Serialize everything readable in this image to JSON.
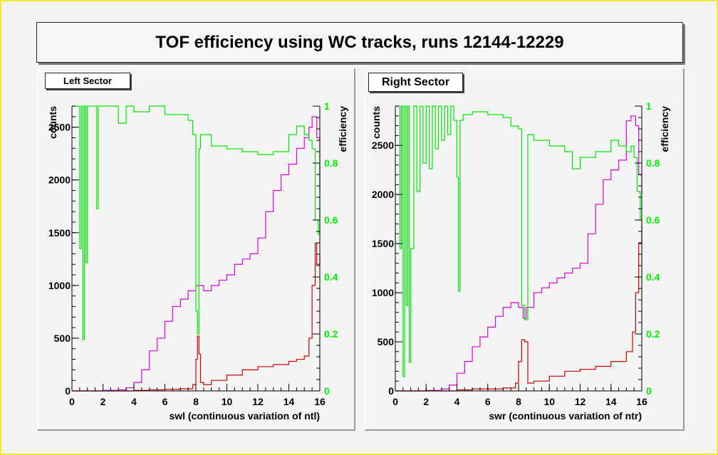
{
  "title": "TOF efficiency using WC tracks, runs 12144-12229",
  "colors": {
    "counts_all": "#dd00dd",
    "counts_fail": "#cc0000",
    "efficiency": "#00e600",
    "efficiency_axis": "#00ee00",
    "axis": "#000000",
    "frame": "#f0e93a"
  },
  "chart_data": [
    {
      "type": "line",
      "label": "Left Sector",
      "xlabel": "swl (continuous variation of ntl)",
      "ylabel": "counts",
      "y2label": "efficiency",
      "xlim": [
        0,
        16
      ],
      "ylim": [
        0,
        2700
      ],
      "y2lim": [
        0,
        1
      ],
      "x_ticks": [
        "0",
        "2",
        "4",
        "6",
        "8",
        "10",
        "12",
        "14",
        "16"
      ],
      "y_ticks": [
        "0",
        "500",
        "1000",
        "1500",
        "2000",
        "2500"
      ],
      "y2_ticks": [
        "0",
        "0.2",
        "0.4",
        "0.6",
        "0.8",
        "1"
      ],
      "series": [
        {
          "id": "counts_all",
          "axis": "left",
          "x": [
            0,
            1,
            2,
            3,
            3.5,
            4,
            4.5,
            5,
            5.5,
            6,
            6.5,
            7,
            7.5,
            8,
            8.5,
            9,
            9.5,
            10,
            10.5,
            11,
            11.5,
            12,
            12.5,
            13,
            13.5,
            14,
            14.5,
            15,
            15.3,
            15.5,
            15.8,
            16
          ],
          "y": [
            0,
            0,
            5,
            10,
            30,
            80,
            200,
            380,
            500,
            660,
            800,
            870,
            950,
            1000,
            950,
            1000,
            1050,
            1100,
            1200,
            1250,
            1300,
            1450,
            1700,
            1900,
            2050,
            2150,
            2300,
            2400,
            2500,
            2600,
            2400,
            1900
          ]
        },
        {
          "id": "counts_fail",
          "axis": "left",
          "x": [
            0,
            1,
            2,
            3,
            4,
            5,
            6,
            7,
            7.8,
            8,
            8.1,
            8.2,
            8.3,
            8.5,
            9,
            10,
            11,
            12,
            13,
            14,
            14.5,
            15,
            15.3,
            15.5,
            15.7,
            15.8,
            16
          ],
          "y": [
            0,
            0,
            0,
            0,
            5,
            10,
            15,
            20,
            60,
            300,
            520,
            350,
            80,
            60,
            100,
            150,
            200,
            230,
            250,
            280,
            300,
            330,
            500,
            1000,
            1400,
            1200,
            1300
          ]
        },
        {
          "id": "efficiency",
          "axis": "right",
          "x": [
            0,
            0.4,
            0.5,
            0.6,
            0.7,
            0.8,
            0.9,
            1,
            1.5,
            1.6,
            1.7,
            2,
            3,
            3.5,
            4,
            5,
            6,
            7,
            7.5,
            7.8,
            8,
            8.1,
            8.2,
            8.3,
            8.5,
            9,
            10,
            11,
            12,
            13,
            14,
            14.5,
            15,
            15.3,
            15.5,
            15.7,
            15.9,
            16
          ],
          "y": [
            1,
            1,
            0.5,
            1,
            0.18,
            1,
            0.45,
            1,
            1,
            0.64,
            1,
            1,
            0.94,
            1,
            0.98,
            1,
            0.97,
            0.97,
            0.95,
            0.9,
            0.28,
            0.2,
            0.85,
            0.9,
            0.9,
            0.86,
            0.85,
            0.84,
            0.83,
            0.84,
            0.9,
            0.93,
            0.9,
            0.88,
            0.85,
            0.6,
            0.55,
            0.8
          ]
        }
      ]
    },
    {
      "type": "line",
      "label": "Right Sector",
      "xlabel": "swr (continuous variation of ntr)",
      "ylabel": "counts",
      "y2label": "efficiency",
      "xlim": [
        0,
        16
      ],
      "ylim": [
        0,
        2900
      ],
      "y2lim": [
        0,
        1
      ],
      "x_ticks": [
        "0",
        "2",
        "4",
        "6",
        "8",
        "10",
        "12",
        "14",
        "16"
      ],
      "y_ticks": [
        "0",
        "500",
        "1000",
        "1500",
        "2000",
        "2500"
      ],
      "y2_ticks": [
        "0",
        "0.2",
        "0.4",
        "0.6",
        "0.8",
        "1"
      ],
      "series": [
        {
          "id": "counts_all",
          "axis": "left",
          "x": [
            0,
            1,
            2,
            3,
            3.5,
            4,
            4.5,
            5,
            5.5,
            6,
            6.5,
            7,
            7.5,
            8,
            8.3,
            8.5,
            9,
            9.5,
            10,
            10.5,
            11,
            11.5,
            12,
            12.5,
            13,
            13.5,
            14,
            14.5,
            15,
            15.3,
            15.6,
            15.8,
            16
          ],
          "y": [
            0,
            0,
            5,
            20,
            60,
            180,
            300,
            450,
            550,
            650,
            760,
            850,
            900,
            850,
            740,
            850,
            1000,
            1050,
            1100,
            1150,
            1200,
            1250,
            1300,
            1600,
            1900,
            2150,
            2250,
            2350,
            2750,
            2800,
            2700,
            2200,
            2000
          ]
        },
        {
          "id": "counts_fail",
          "axis": "left",
          "x": [
            0,
            1,
            2,
            3,
            4,
            5,
            6,
            7,
            7.8,
            8,
            8.2,
            8.4,
            8.6,
            9,
            10,
            11,
            12,
            13,
            14,
            15,
            15.4,
            15.6,
            15.8,
            16
          ],
          "y": [
            0,
            0,
            0,
            0,
            10,
            20,
            20,
            30,
            80,
            300,
            520,
            500,
            80,
            100,
            150,
            200,
            220,
            250,
            300,
            400,
            600,
            1000,
            1500,
            1700
          ]
        },
        {
          "id": "efficiency",
          "axis": "right",
          "x": [
            0,
            0.2,
            0.3,
            0.4,
            0.5,
            0.6,
            0.7,
            0.8,
            0.9,
            1,
            1.2,
            1.4,
            1.6,
            1.8,
            2,
            2.2,
            2.4,
            2.6,
            2.8,
            3,
            3.2,
            3.4,
            3.6,
            3.8,
            4,
            4.1,
            4.2,
            4.4,
            5,
            6,
            7,
            7.5,
            8,
            8.2,
            8.4,
            8.6,
            9,
            10,
            11,
            11.5,
            12,
            13,
            14,
            14.5,
            15,
            15.3,
            15.5,
            15.7,
            15.9,
            16
          ],
          "y": [
            1,
            1,
            0.5,
            1,
            0.05,
            1,
            0.3,
            1,
            0.1,
            0.5,
            1,
            0.7,
            1,
            0.8,
            1,
            0.78,
            1,
            0.85,
            1,
            0.88,
            1,
            0.9,
            1,
            0.95,
            0.75,
            0.35,
            0.95,
            0.97,
            0.98,
            0.97,
            0.96,
            0.93,
            0.92,
            0.3,
            0.25,
            0.9,
            0.88,
            0.86,
            0.84,
            0.78,
            0.82,
            0.84,
            0.88,
            0.86,
            0.84,
            0.86,
            0.82,
            0.7,
            0.6,
            0.2
          ]
        }
      ]
    }
  ]
}
